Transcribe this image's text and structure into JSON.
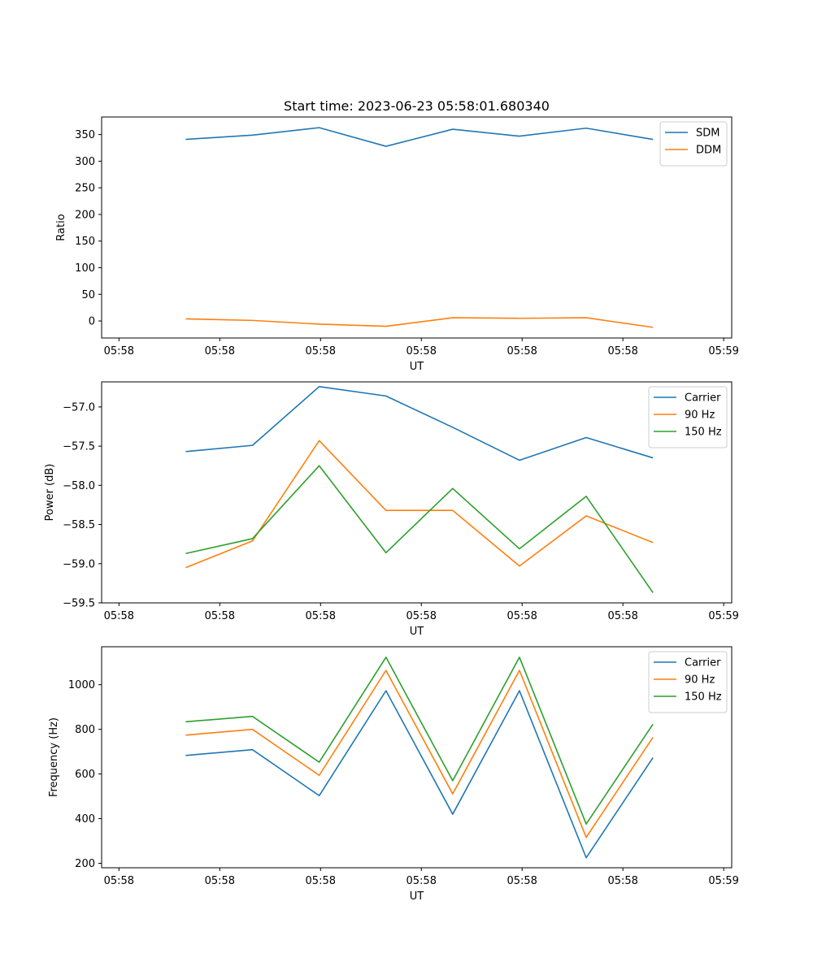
{
  "figure": {
    "title": "Start time: 2023-06-23 05:58:01.680340"
  },
  "colors": {
    "blue": "#1f77b4",
    "orange": "#ff7f0e",
    "green": "#2ca02c"
  },
  "chart_data": [
    {
      "type": "line",
      "title": "Start time: 2023-06-23 05:58:01.680340",
      "xlabel": "UT",
      "ylabel": "Ratio",
      "x": [
        1,
        2,
        3,
        4,
        5,
        6,
        7,
        8
      ],
      "xlim": [
        -0.26,
        9.18
      ],
      "xticks": [
        0,
        1.51,
        3.02,
        4.53,
        6.04,
        7.55,
        9.06
      ],
      "xtick_labels": [
        "05:58",
        "05:58",
        "05:58",
        "05:58",
        "05:58",
        "05:58",
        "05:59"
      ],
      "ylim": [
        -32,
        383
      ],
      "yticks": [
        0,
        50,
        100,
        150,
        200,
        250,
        300,
        350
      ],
      "ytick_labels": [
        "0",
        "50",
        "100",
        "150",
        "200",
        "250",
        "300",
        "350"
      ],
      "legend_position": "top-right",
      "series": [
        {
          "name": "SDM",
          "color": "#1f77b4",
          "values": [
            341,
            349,
            363,
            328,
            360,
            347,
            362,
            341
          ]
        },
        {
          "name": "DDM",
          "color": "#ff7f0e",
          "values": [
            4,
            1,
            -6,
            -10,
            6,
            5,
            6,
            -12
          ]
        }
      ]
    },
    {
      "type": "line",
      "xlabel": "UT",
      "ylabel": "Power (dB)",
      "x": [
        1,
        2,
        3,
        4,
        5,
        6,
        7,
        8
      ],
      "xlim": [
        -0.26,
        9.18
      ],
      "xticks": [
        0,
        1.51,
        3.02,
        4.53,
        6.04,
        7.55,
        9.06
      ],
      "xtick_labels": [
        "05:58",
        "05:58",
        "05:58",
        "05:58",
        "05:58",
        "05:58",
        "05:59"
      ],
      "ylim": [
        -59.5,
        -56.68
      ],
      "yticks": [
        -59.5,
        -59.0,
        -58.5,
        -58.0,
        -57.5,
        -57.0
      ],
      "ytick_labels": [
        "−59.5",
        "−59.0",
        "−58.5",
        "−58.0",
        "−57.5",
        "−57.0"
      ],
      "legend_position": "top-right",
      "series": [
        {
          "name": "Carrier",
          "color": "#1f77b4",
          "values": [
            -57.57,
            -57.49,
            -56.74,
            -56.86,
            -57.26,
            -57.68,
            -57.39,
            -57.65
          ]
        },
        {
          "name": "90 Hz",
          "color": "#ff7f0e",
          "values": [
            -59.05,
            -58.71,
            -57.43,
            -58.32,
            -58.32,
            -59.03,
            -58.39,
            -58.73
          ]
        },
        {
          "name": "150 Hz",
          "color": "#2ca02c",
          "values": [
            -58.87,
            -58.68,
            -57.75,
            -58.86,
            -58.04,
            -58.81,
            -58.14,
            -59.37
          ]
        }
      ]
    },
    {
      "type": "line",
      "xlabel": "UT",
      "ylabel": "Frequency (Hz)",
      "x": [
        1,
        2,
        3,
        4,
        5,
        6,
        7,
        8
      ],
      "xlim": [
        -0.26,
        9.18
      ],
      "xticks": [
        0,
        1.51,
        3.02,
        4.53,
        6.04,
        7.55,
        9.06
      ],
      "xtick_labels": [
        "05:58",
        "05:58",
        "05:58",
        "05:58",
        "05:58",
        "05:58",
        "05:59"
      ],
      "ylim": [
        180,
        1170
      ],
      "yticks": [
        200,
        400,
        600,
        800,
        1000
      ],
      "ytick_labels": [
        "200",
        "400",
        "600",
        "800",
        "1000"
      ],
      "legend_position": "top-right",
      "series": [
        {
          "name": "Carrier",
          "color": "#1f77b4",
          "values": [
            683,
            709,
            503,
            973,
            420,
            973,
            225,
            673
          ]
        },
        {
          "name": "90 Hz",
          "color": "#ff7f0e",
          "values": [
            774,
            800,
            594,
            1064,
            511,
            1064,
            316,
            764
          ]
        },
        {
          "name": "150 Hz",
          "color": "#2ca02c",
          "values": [
            834,
            858,
            653,
            1123,
            570,
            1123,
            376,
            823
          ]
        }
      ]
    }
  ]
}
